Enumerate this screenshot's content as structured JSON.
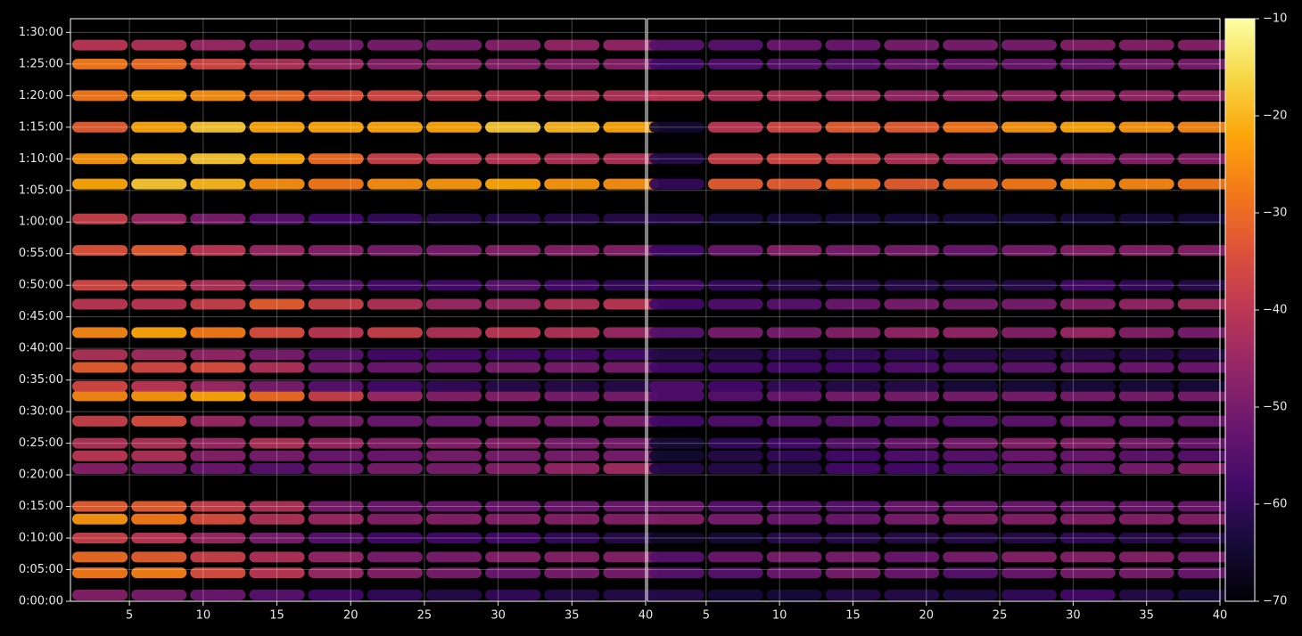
{
  "chart_data": {
    "type": "heatmap",
    "y": [
      60,
      270,
      420,
      600,
      780,
      900,
      1260,
      1380,
      1500,
      1710,
      1950,
      2040,
      2220,
      2340,
      2550,
      2820,
      3000,
      3330,
      3630,
      3960,
      4200,
      4500,
      4800,
      5100,
      5280
    ],
    "ylim": [
      0,
      5530
    ],
    "yticks": [
      {
        "value": 0,
        "label": "0:00:00"
      },
      {
        "value": 300,
        "label": "0:05:00"
      },
      {
        "value": 600,
        "label": "0:10:00"
      },
      {
        "value": 900,
        "label": "0:15:00"
      },
      {
        "value": 1200,
        "label": "0:20:00"
      },
      {
        "value": 1500,
        "label": "0:25:00"
      },
      {
        "value": 1800,
        "label": "0:30:00"
      },
      {
        "value": 2100,
        "label": "0:35:00"
      },
      {
        "value": 2400,
        "label": "0:40:00"
      },
      {
        "value": 2700,
        "label": "0:45:00"
      },
      {
        "value": 3000,
        "label": "0:50:00"
      },
      {
        "value": 3300,
        "label": "0:55:00"
      },
      {
        "value": 3600,
        "label": "1:00:00"
      },
      {
        "value": 3900,
        "label": "1:05:00"
      },
      {
        "value": 4200,
        "label": "1:10:00"
      },
      {
        "value": 4500,
        "label": "1:15:00"
      },
      {
        "value": 4800,
        "label": "1:20:00"
      },
      {
        "value": 5100,
        "label": "1:25:00"
      },
      {
        "value": 5400,
        "label": "1:30:00"
      }
    ],
    "grid": true,
    "colorbar": {
      "cmap": "inferno",
      "lim": [
        -70,
        -10
      ],
      "ticks": [
        {
          "value": -70,
          "label": "−70"
        },
        {
          "value": -60,
          "label": "−60"
        },
        {
          "value": -50,
          "label": "−50"
        },
        {
          "value": -40,
          "label": "−40"
        },
        {
          "value": -30,
          "label": "−30"
        },
        {
          "value": -20,
          "label": "−20"
        },
        {
          "value": -10,
          "label": "−10"
        }
      ]
    },
    "panels": [
      {
        "x": [
          3,
          7,
          11,
          15,
          19,
          23,
          27,
          31,
          35,
          39
        ],
        "xlim": [
          1,
          40
        ],
        "xticks": [
          5,
          10,
          15,
          20,
          25,
          30,
          35,
          40
        ],
        "values": [
          [
            -48,
            -50,
            -52,
            -55,
            -58,
            -60,
            -62,
            -60,
            -62,
            -62
          ],
          [
            -28,
            -27,
            -35,
            -40,
            -45,
            -48,
            -50,
            -52,
            -50,
            -50
          ],
          [
            -30,
            -32,
            -38,
            -42,
            -46,
            -50,
            -50,
            -48,
            -48,
            -48
          ],
          [
            -38,
            -40,
            -45,
            -50,
            -55,
            -58,
            -58,
            -58,
            -60,
            -62
          ],
          [
            -24,
            -28,
            -35,
            -42,
            -45,
            -48,
            -48,
            -48,
            -48,
            -48
          ],
          [
            -32,
            -32,
            -38,
            -42,
            -50,
            -52,
            -52,
            -52,
            -52,
            -52
          ],
          [
            -48,
            -50,
            -52,
            -55,
            -52,
            -50,
            -50,
            -48,
            -46,
            -44
          ],
          [
            -40,
            -42,
            -48,
            -50,
            -52,
            -52,
            -50,
            -50,
            -50,
            -50
          ],
          [
            -42,
            -42,
            -45,
            -42,
            -45,
            -48,
            -48,
            -48,
            -50,
            -50
          ],
          [
            -38,
            -35,
            -45,
            -50,
            -50,
            -52,
            -52,
            -50,
            -50,
            -50
          ],
          [
            -26,
            -24,
            -22,
            -30,
            -38,
            -45,
            -48,
            -48,
            -50,
            -50
          ],
          [
            -36,
            -40,
            -45,
            -50,
            -55,
            -58,
            -60,
            -62,
            -62,
            -62
          ],
          [
            -32,
            -36,
            -35,
            -42,
            -50,
            -52,
            -52,
            -50,
            -50,
            -50
          ],
          [
            -42,
            -44,
            -46,
            -50,
            -55,
            -58,
            -58,
            -58,
            -58,
            -58
          ],
          [
            -26,
            -22,
            -28,
            -35,
            -40,
            -38,
            -42,
            -40,
            -42,
            -45
          ],
          [
            -40,
            -40,
            -38,
            -32,
            -38,
            -42,
            -45,
            -45,
            -42,
            -40
          ],
          [
            -36,
            -36,
            -42,
            -50,
            -55,
            -58,
            -58,
            -55,
            -58,
            -60
          ],
          [
            -34,
            -32,
            -40,
            -45,
            -48,
            -50,
            -50,
            -48,
            -48,
            -48
          ],
          [
            -38,
            -45,
            -50,
            -55,
            -58,
            -60,
            -62,
            -62,
            -62,
            -62
          ],
          [
            -22,
            -18,
            -20,
            -25,
            -28,
            -25,
            -24,
            -22,
            -24,
            -25
          ],
          [
            -24,
            -20,
            -18,
            -22,
            -30,
            -38,
            -40,
            -40,
            -42,
            -42
          ],
          [
            -32,
            -22,
            -18,
            -22,
            -22,
            -22,
            -22,
            -18,
            -20,
            -22
          ],
          [
            -28,
            -22,
            -25,
            -30,
            -34,
            -36,
            -38,
            -40,
            -42,
            -42
          ],
          [
            -28,
            -30,
            -36,
            -42,
            -45,
            -48,
            -48,
            -48,
            -48,
            -48
          ],
          [
            -40,
            -42,
            -45,
            -48,
            -50,
            -50,
            -50,
            -48,
            -46,
            -46
          ]
        ]
      },
      {
        "x": [
          3,
          7,
          11,
          15,
          19,
          23,
          27,
          31,
          35,
          39
        ],
        "xlim": [
          1,
          40
        ],
        "xticks": [
          5,
          10,
          15,
          20,
          25,
          30,
          35,
          40
        ],
        "values": [
          [
            -62,
            -64,
            -64,
            -62,
            -62,
            -63,
            -60,
            -58,
            -62,
            -64
          ],
          [
            -55,
            -55,
            -52,
            -50,
            -52,
            -55,
            -52,
            -50,
            -50,
            -52
          ],
          [
            -55,
            -52,
            -50,
            -50,
            -52,
            -50,
            -48,
            -48,
            -48,
            -50
          ],
          [
            -66,
            -64,
            -62,
            -62,
            -62,
            -62,
            -62,
            -60,
            -62,
            -62
          ],
          [
            -48,
            -50,
            -52,
            -52,
            -50,
            -48,
            -48,
            -48,
            -48,
            -48
          ],
          [
            -52,
            -55,
            -55,
            -55,
            -52,
            -52,
            -52,
            -52,
            -52,
            -52
          ],
          [
            -62,
            -62,
            -62,
            -58,
            -58,
            -56,
            -54,
            -52,
            -50,
            -48
          ],
          [
            -65,
            -62,
            -60,
            -58,
            -56,
            -55,
            -52,
            -52,
            -54,
            -55
          ],
          [
            -64,
            -60,
            -58,
            -55,
            -52,
            -50,
            -48,
            -48,
            -50,
            -52
          ],
          [
            -58,
            -56,
            -55,
            -55,
            -55,
            -55,
            -54,
            -52,
            -52,
            -52
          ],
          [
            -56,
            -55,
            -52,
            -50,
            -50,
            -50,
            -50,
            -50,
            -50,
            -50
          ],
          [
            -56,
            -58,
            -60,
            -62,
            -62,
            -64,
            -64,
            -64,
            -64,
            -64
          ],
          [
            -58,
            -58,
            -58,
            -58,
            -56,
            -55,
            -54,
            -52,
            -52,
            -52
          ],
          [
            -62,
            -62,
            -60,
            -60,
            -60,
            -62,
            -62,
            -62,
            -62,
            -62
          ],
          [
            -55,
            -50,
            -50,
            -48,
            -46,
            -46,
            -48,
            -45,
            -48,
            -50
          ],
          [
            -58,
            -56,
            -55,
            -52,
            -50,
            -50,
            -50,
            -48,
            -46,
            -44
          ],
          [
            -58,
            -60,
            -62,
            -62,
            -62,
            -62,
            -62,
            -58,
            -60,
            -62
          ],
          [
            -58,
            -52,
            -48,
            -50,
            -50,
            -52,
            -50,
            -48,
            -48,
            -48
          ],
          [
            -62,
            -64,
            -64,
            -64,
            -64,
            -64,
            -64,
            -64,
            -64,
            -64
          ],
          [
            -60,
            -32,
            -32,
            -30,
            -32,
            -30,
            -28,
            -25,
            -26,
            -28
          ],
          [
            -62,
            -38,
            -36,
            -38,
            -42,
            -45,
            -48,
            -48,
            -48,
            -48
          ],
          [
            -65,
            -40,
            -36,
            -32,
            -32,
            -28,
            -24,
            -22,
            -24,
            -26
          ],
          [
            -40,
            -42,
            -42,
            -44,
            -46,
            -46,
            -46,
            -46,
            -46,
            -46
          ],
          [
            -58,
            -56,
            -55,
            -55,
            -52,
            -52,
            -52,
            -52,
            -50,
            -50
          ],
          [
            -55,
            -55,
            -52,
            -52,
            -50,
            -50,
            -50,
            -48,
            -48,
            -48
          ]
        ]
      }
    ]
  }
}
